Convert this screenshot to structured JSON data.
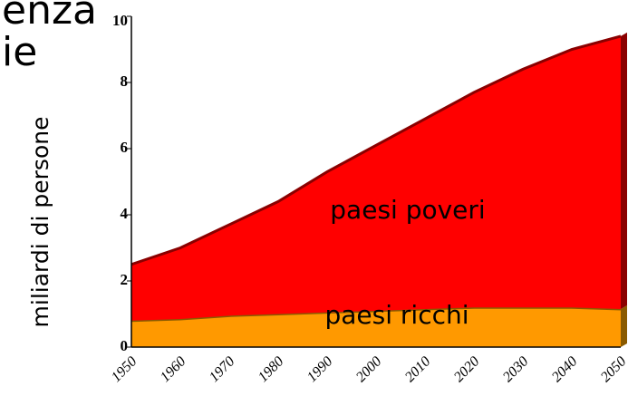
{
  "chart_data": {
    "type": "stacked_area",
    "title_lines": [
      "enza",
      "ie"
    ],
    "ylabel": "miliardi di persone",
    "categories": [
      "1950",
      "1960",
      "1970",
      "1980",
      "1990",
      "2000",
      "2010",
      "2020",
      "2030",
      "2040",
      "2050"
    ],
    "series": [
      {
        "name": "paesi ricchi",
        "color": "#ff9900",
        "values": [
          0.8,
          0.85,
          0.95,
          1.0,
          1.05,
          1.1,
          1.15,
          1.2,
          1.2,
          1.2,
          1.15
        ]
      },
      {
        "name": "paesi poveri",
        "color": "#ff0000",
        "values": [
          1.7,
          2.15,
          2.75,
          3.4,
          4.25,
          5.0,
          5.75,
          6.5,
          7.2,
          7.8,
          8.25
        ]
      }
    ],
    "ylim": [
      0,
      10
    ],
    "yticks": [
      0,
      2,
      4,
      6,
      8,
      10
    ]
  }
}
